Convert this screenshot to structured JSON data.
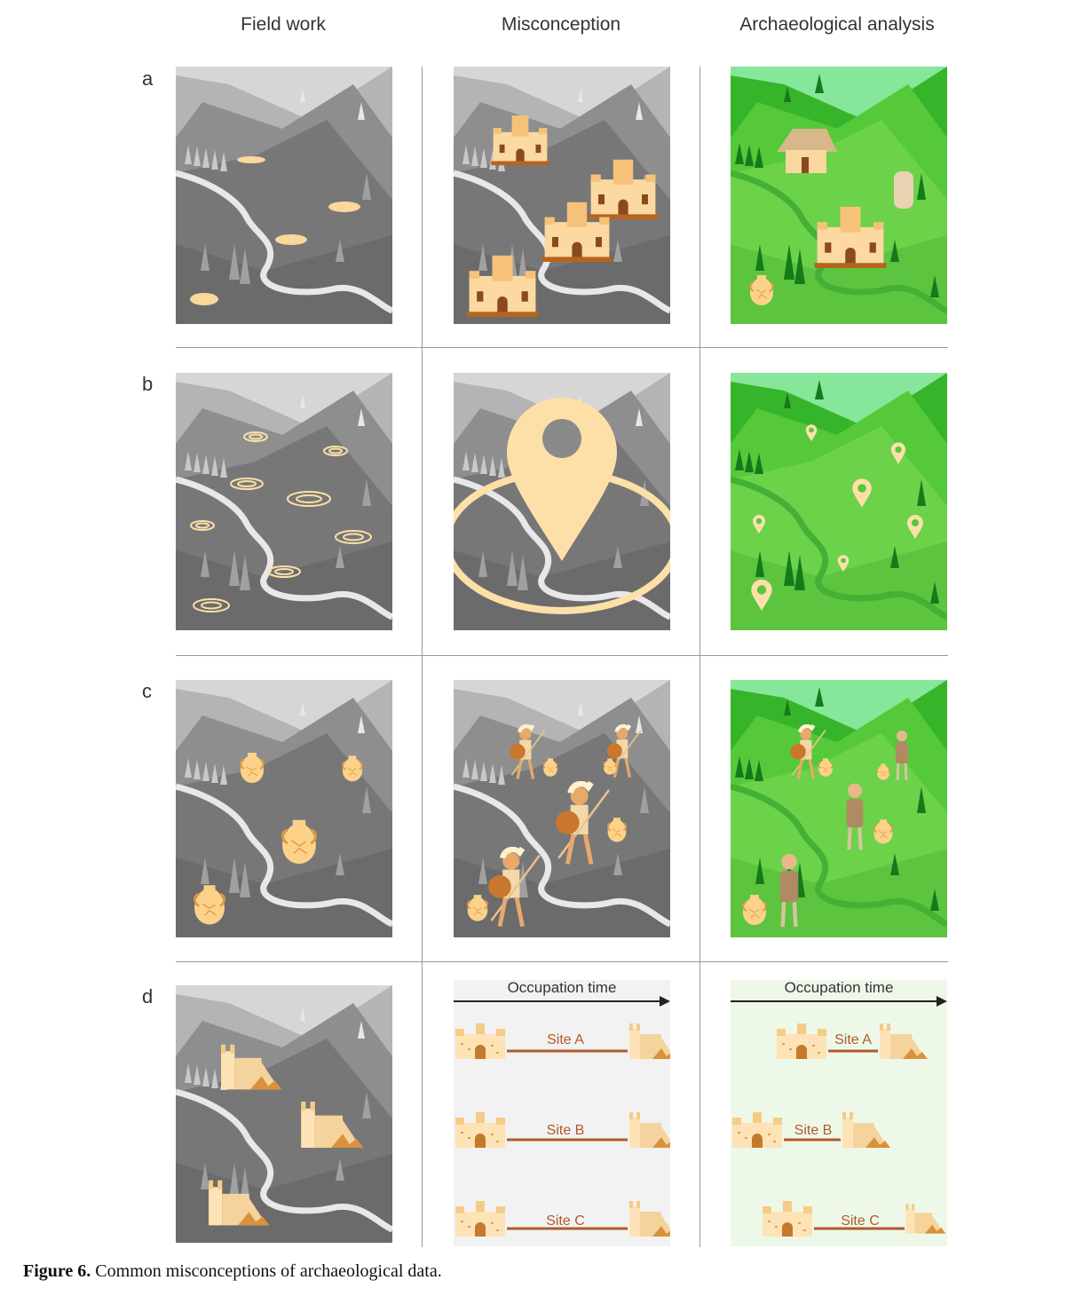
{
  "columns": [
    "Field work",
    "Misconception",
    "Archaeological analysis"
  ],
  "rows": [
    "a",
    "b",
    "c",
    "d"
  ],
  "timeline": {
    "title": "Occupation time",
    "sites": [
      "Site A",
      "Site B",
      "Site C"
    ]
  },
  "caption": {
    "label": "Figure 6.",
    "text": " Common misconceptions of archaeological data."
  },
  "colors": {
    "grey_dark": "#5f5f5f",
    "grey_mid": "#8a8a8a",
    "grey_light": "#cfcfcf",
    "green_dark": "#1f8a1f",
    "green_mid": "#4cc23a",
    "green_light": "#7fe06a",
    "accent": "#fde0a8",
    "accent_dark": "#d9913e"
  }
}
